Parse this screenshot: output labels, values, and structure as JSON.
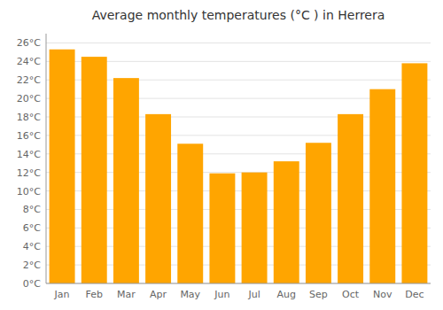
{
  "chart_data": {
    "type": "bar",
    "title": "Average monthly temperatures (°C ) in Herrera",
    "categories": [
      "Jan",
      "Feb",
      "Mar",
      "Apr",
      "May",
      "Jun",
      "Jul",
      "Aug",
      "Sep",
      "Oct",
      "Nov",
      "Dec"
    ],
    "values": [
      25.3,
      24.5,
      22.2,
      18.3,
      15.1,
      11.9,
      12.0,
      13.2,
      15.2,
      18.3,
      21.0,
      23.8
    ],
    "color": "#FFA500",
    "ylim": [
      0,
      27
    ],
    "yticks": [
      {
        "value": 0,
        "label": "0°C"
      },
      {
        "value": 2,
        "label": "2°C"
      },
      {
        "value": 4,
        "label": "4°C"
      },
      {
        "value": 6,
        "label": "6°C"
      },
      {
        "value": 8,
        "label": "8°C"
      },
      {
        "value": 10,
        "label": "10°C"
      },
      {
        "value": 12,
        "label": "12°C"
      },
      {
        "value": 14,
        "label": "14°C"
      },
      {
        "value": 16,
        "label": "16°C"
      },
      {
        "value": 18,
        "label": "18°C"
      },
      {
        "value": 20,
        "label": "20°C"
      },
      {
        "value": 22,
        "label": "22°C"
      },
      {
        "value": 24,
        "label": "24°C"
      },
      {
        "value": 26,
        "label": "26°C"
      }
    ],
    "grid": true
  }
}
